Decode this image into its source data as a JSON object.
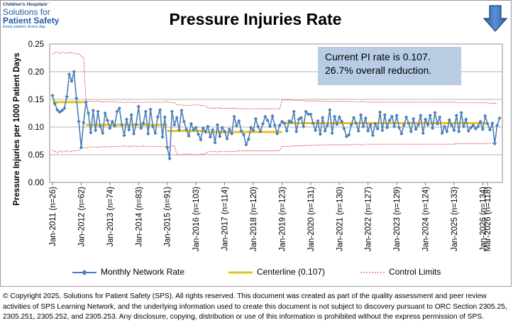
{
  "logo": {
    "line1": "Children's Hospitals'",
    "line2": "Solutions for",
    "line3": "Patient Safety",
    "line4": "Every patient. Every day."
  },
  "arrow_icon": "down-arrow-icon",
  "annotation": {
    "line1": "Current PI rate is 0.107.",
    "line2": "26.7% overall reduction."
  },
  "legend": {
    "series": "Monthly Network Rate",
    "centerline": "Centerline (0.107)",
    "limits": "Control Limits"
  },
  "copyright": "© Copyright 2025, Solutions for Patient Safety (SPS).  All rights reserved.  This document was created as part of the quality assessment and peer review activities of SPS Learning Network, and the underlying information used to create this document is not subject to discovery pursuant to ORC Section 2305.25, 2305.251, 2305.252, and 2305.253. Any disclosure, copying, distribution or use of this information is prohibited without the express permission of SPS.",
  "colors": {
    "series": "#4a7ebb",
    "centerline": "#e8c21c",
    "limits": "#e0332b",
    "annotation_bg": "#b8cce4"
  },
  "chart_data": {
    "type": "line",
    "title": "Pressure Injuries Rate",
    "ylabel": "Pressure Injuries per 1000 Patient Days",
    "ylim": [
      0,
      0.25
    ],
    "yticks": [
      "0.00",
      "0.05",
      "0.10",
      "0.15",
      "0.20",
      "0.25"
    ],
    "grid": "horizontal",
    "legend_position": "bottom",
    "xtick_labels": [
      "Jan-2011 (n=26)",
      "Jan-2012 (n=62)",
      "Jan-2013 (n=74)",
      "Jan-2014 (n=83)",
      "Jan-2015 (n=91)",
      "Jan-2016 (n=103)",
      "Jan-2017 (n=114)",
      "Jan-2018 (n=120)",
      "Jan-2019 (n=123)",
      "Jan-2020 (n=131)",
      "Jan-2021 (n=130)",
      "Jan-2022 (n=127)",
      "Jan-2023 (n=129)",
      "Jan-2024 (n=124)",
      "Jan-2025 (n=133)",
      "Jan-2026 (n=134)",
      "Mar-2026 (n=118)"
    ],
    "xtick_months": [
      0,
      12,
      24,
      36,
      48,
      60,
      72,
      84,
      96,
      108,
      120,
      132,
      144,
      156,
      168,
      180,
      182
    ],
    "series": [
      {
        "name": "Monthly Network Rate",
        "values": [
          0.157,
          0.142,
          0.131,
          0.127,
          0.13,
          0.134,
          0.155,
          0.195,
          0.183,
          0.2,
          0.152,
          0.11,
          0.063,
          0.108,
          0.145,
          0.125,
          0.09,
          0.13,
          0.094,
          0.128,
          0.101,
          0.089,
          0.125,
          0.112,
          0.098,
          0.11,
          0.102,
          0.128,
          0.134,
          0.104,
          0.085,
          0.114,
          0.095,
          0.122,
          0.088,
          0.105,
          0.137,
          0.098,
          0.107,
          0.128,
          0.088,
          0.132,
          0.101,
          0.089,
          0.118,
          0.131,
          0.082,
          0.118,
          0.063,
          0.043,
          0.128,
          0.104,
          0.117,
          0.095,
          0.13,
          0.11,
          0.096,
          0.084,
          0.106,
          0.095,
          0.099,
          0.087,
          0.077,
          0.098,
          0.091,
          0.101,
          0.082,
          0.095,
          0.072,
          0.104,
          0.083,
          0.099,
          0.092,
          0.079,
          0.096,
          0.088,
          0.119,
          0.102,
          0.111,
          0.093,
          0.086,
          0.068,
          0.078,
          0.099,
          0.094,
          0.115,
          0.101,
          0.092,
          0.106,
          0.119,
          0.112,
          0.101,
          0.12,
          0.103,
          0.088,
          0.103,
          0.11,
          0.107,
          0.093,
          0.111,
          0.109,
          0.128,
          0.092,
          0.114,
          0.117,
          0.101,
          0.128,
          0.123,
          0.123,
          0.107,
          0.094,
          0.111,
          0.087,
          0.117,
          0.093,
          0.103,
          0.131,
          0.089,
          0.119,
          0.105,
          0.118,
          0.11,
          0.097,
          0.083,
          0.086,
          0.104,
          0.117,
          0.107,
          0.093,
          0.122,
          0.101,
          0.116,
          0.093,
          0.104,
          0.085,
          0.106,
          0.097,
          0.127,
          0.094,
          0.122,
          0.099,
          0.112,
          0.119,
          0.101,
          0.121,
          0.099,
          0.088,
          0.103,
          0.118,
          0.107,
          0.092,
          0.115,
          0.096,
          0.104,
          0.121,
          0.089,
          0.114,
          0.104,
          0.121,
          0.098,
          0.126,
          0.106,
          0.118,
          0.089,
          0.101,
          0.092,
          0.113,
          0.103,
          0.094,
          0.121,
          0.092,
          0.126,
          0.101,
          0.114,
          0.093,
          0.099,
          0.103,
          0.097,
          0.101,
          0.11,
          0.096,
          0.12,
          0.106,
          0.095,
          0.107,
          0.07,
          0.103,
          0.116
        ]
      }
    ],
    "centerline": [
      {
        "from": 0,
        "to": 14,
        "value": 0.145
      },
      {
        "from": 14,
        "to": 48,
        "value": 0.104
      },
      {
        "from": 48,
        "to": 64,
        "value": 0.093
      },
      {
        "from": 64,
        "to": 96,
        "value": 0.091
      },
      {
        "from": 96,
        "to": 182,
        "value": 0.107
      }
    ],
    "control_limits": {
      "upper": [
        0.232,
        0.234,
        0.236,
        0.233,
        0.235,
        0.234,
        0.233,
        0.235,
        0.234,
        0.233,
        0.232,
        0.232,
        0.228,
        0.226,
        0.148,
        0.147,
        0.146,
        0.146,
        0.146,
        0.147,
        0.146,
        0.145,
        0.146,
        0.146,
        0.145,
        0.146,
        0.145,
        0.145,
        0.145,
        0.145,
        0.144,
        0.145,
        0.145,
        0.145,
        0.144,
        0.145,
        0.145,
        0.145,
        0.144,
        0.145,
        0.145,
        0.145,
        0.145,
        0.145,
        0.145,
        0.145,
        0.145,
        0.145,
        0.146,
        0.145,
        0.144,
        0.144,
        0.14,
        0.14,
        0.14,
        0.139,
        0.139,
        0.139,
        0.139,
        0.14,
        0.14,
        0.14,
        0.139,
        0.139,
        0.138,
        0.135,
        0.134,
        0.134,
        0.134,
        0.135,
        0.134,
        0.134,
        0.134,
        0.134,
        0.134,
        0.134,
        0.134,
        0.134,
        0.133,
        0.133,
        0.133,
        0.133,
        0.133,
        0.133,
        0.133,
        0.133,
        0.133,
        0.133,
        0.133,
        0.133,
        0.133,
        0.133,
        0.133,
        0.133,
        0.133,
        0.132,
        0.149,
        0.149,
        0.149,
        0.149,
        0.149,
        0.148,
        0.148,
        0.148,
        0.148,
        0.148,
        0.147,
        0.147,
        0.147,
        0.147,
        0.147,
        0.147,
        0.146,
        0.147,
        0.146,
        0.146,
        0.146,
        0.146,
        0.146,
        0.146,
        0.146,
        0.146,
        0.146,
        0.146,
        0.146,
        0.146,
        0.146,
        0.145,
        0.145,
        0.146,
        0.146,
        0.145,
        0.145,
        0.145,
        0.145,
        0.145,
        0.145,
        0.145,
        0.145,
        0.145,
        0.145,
        0.145,
        0.145,
        0.145,
        0.145,
        0.145,
        0.145,
        0.145,
        0.145,
        0.145,
        0.145,
        0.145,
        0.145,
        0.145,
        0.145,
        0.145,
        0.145,
        0.145,
        0.145,
        0.145,
        0.145,
        0.145,
        0.145,
        0.145,
        0.145,
        0.145,
        0.145,
        0.145,
        0.145,
        0.144,
        0.144,
        0.144,
        0.144,
        0.144,
        0.144,
        0.144,
        0.144,
        0.144,
        0.144,
        0.144,
        0.144,
        0.144,
        0.144,
        0.143,
        0.143,
        0.143,
        0.143
      ],
      "lower": [
        0.058,
        0.056,
        0.054,
        0.057,
        0.055,
        0.056,
        0.057,
        0.055,
        0.056,
        0.057,
        0.058,
        0.058,
        0.062,
        0.064,
        0.062,
        0.063,
        0.064,
        0.064,
        0.064,
        0.063,
        0.064,
        0.065,
        0.064,
        0.064,
        0.065,
        0.064,
        0.065,
        0.065,
        0.065,
        0.065,
        0.066,
        0.065,
        0.065,
        0.065,
        0.066,
        0.065,
        0.065,
        0.065,
        0.066,
        0.065,
        0.065,
        0.065,
        0.065,
        0.065,
        0.065,
        0.065,
        0.065,
        0.065,
        0.064,
        0.065,
        0.066,
        0.066,
        0.05,
        0.05,
        0.05,
        0.051,
        0.051,
        0.051,
        0.051,
        0.05,
        0.05,
        0.05,
        0.051,
        0.051,
        0.052,
        0.055,
        0.056,
        0.056,
        0.056,
        0.055,
        0.056,
        0.056,
        0.056,
        0.056,
        0.056,
        0.056,
        0.056,
        0.056,
        0.057,
        0.057,
        0.057,
        0.057,
        0.057,
        0.057,
        0.057,
        0.057,
        0.057,
        0.057,
        0.057,
        0.057,
        0.057,
        0.057,
        0.057,
        0.057,
        0.057,
        0.058,
        0.065,
        0.065,
        0.065,
        0.065,
        0.065,
        0.066,
        0.066,
        0.066,
        0.066,
        0.066,
        0.067,
        0.067,
        0.067,
        0.067,
        0.067,
        0.067,
        0.068,
        0.067,
        0.068,
        0.068,
        0.068,
        0.068,
        0.068,
        0.068,
        0.068,
        0.068,
        0.068,
        0.068,
        0.068,
        0.068,
        0.068,
        0.069,
        0.069,
        0.068,
        0.068,
        0.069,
        0.069,
        0.069,
        0.069,
        0.069,
        0.069,
        0.069,
        0.069,
        0.069,
        0.069,
        0.069,
        0.069,
        0.069,
        0.069,
        0.069,
        0.069,
        0.069,
        0.069,
        0.069,
        0.069,
        0.069,
        0.069,
        0.069,
        0.069,
        0.069,
        0.069,
        0.069,
        0.069,
        0.069,
        0.069,
        0.069,
        0.069,
        0.069,
        0.069,
        0.069,
        0.069,
        0.069,
        0.069,
        0.07,
        0.07,
        0.07,
        0.07,
        0.07,
        0.07,
        0.07,
        0.07,
        0.07,
        0.07,
        0.07,
        0.07,
        0.07,
        0.07,
        0.071,
        0.071,
        0.071,
        0.071
      ]
    }
  }
}
